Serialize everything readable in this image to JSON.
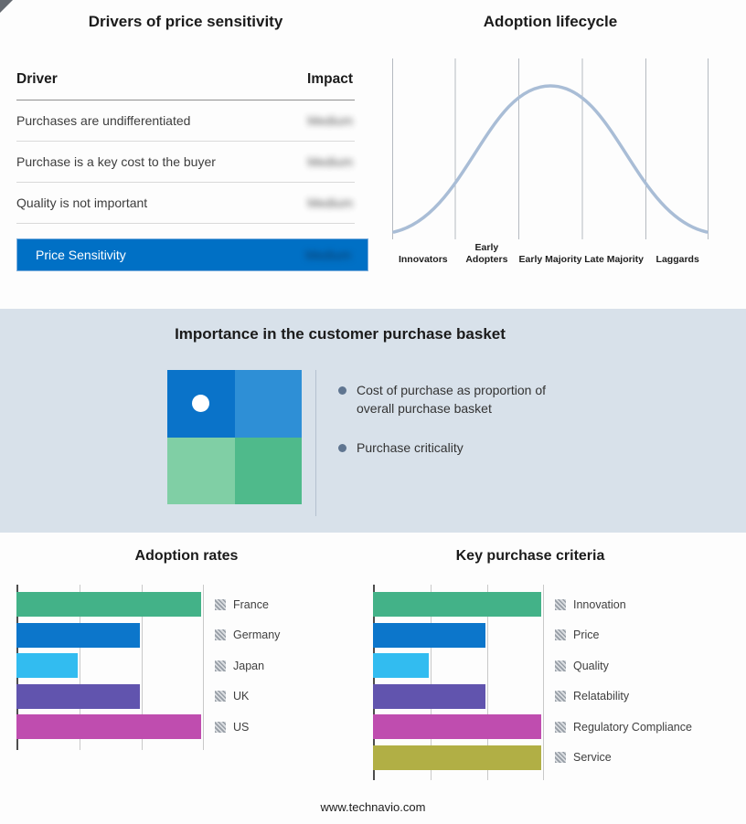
{
  "meta": {
    "footer": "www.technavio.com"
  },
  "icons": {
    "bullet": "filled-circle",
    "legend_swatch": "hatched-square",
    "quadrant_marker": "white-circle"
  },
  "drivers": {
    "title": "Drivers of price sensitivity",
    "col_driver": "Driver",
    "col_impact": "Impact",
    "rows": [
      {
        "driver": "Purchases are undifferentiated",
        "impact": "Medium"
      },
      {
        "driver": "Purchase is a key cost to the buyer",
        "impact": "Medium"
      },
      {
        "driver": "Quality is not important",
        "impact": "Medium"
      }
    ],
    "highlight": {
      "driver": "Price Sensitivity",
      "impact": "Medium",
      "bg": "#0070c5"
    }
  },
  "lifecycle": {
    "title": "Adoption lifecycle",
    "stages": [
      "Innovators",
      "Early Adopters",
      "Early Majority",
      "Late Majority",
      "Laggards"
    ],
    "curve_color": "#a9bdd6"
  },
  "basket": {
    "title": "Importance in the customer purchase basket",
    "bullets": [
      "Cost of purchase as proportion of overall purchase basket",
      "Purchase criticality"
    ],
    "quadrants": {
      "top_left": "#0a73c9",
      "top_right": "#2e8fd6",
      "bottom_left": "#80cfa5",
      "bottom_right": "#4fba8b"
    }
  },
  "chart_data": [
    {
      "type": "bar",
      "title": "Adoption rates",
      "orientation": "horizontal",
      "categories": [
        "France",
        "Germany",
        "Japan",
        "UK",
        "US"
      ],
      "values": [
        3,
        2,
        1,
        2,
        3
      ],
      "xlim": [
        0,
        3
      ],
      "grid": true,
      "legend_position": "right",
      "colors": [
        "#43b288",
        "#0c76cb",
        "#32bcf0",
        "#6154ae",
        "#bf4daf"
      ]
    },
    {
      "type": "bar",
      "title": "Key purchase criteria",
      "orientation": "horizontal",
      "categories": [
        "Innovation",
        "Price",
        "Quality",
        "Relatability",
        "Regulatory Compliance",
        "Service"
      ],
      "values": [
        3,
        2,
        1,
        2,
        3,
        3
      ],
      "xlim": [
        0,
        3
      ],
      "grid": true,
      "legend_position": "right",
      "colors": [
        "#43b288",
        "#0c76cb",
        "#32bcf0",
        "#6154ae",
        "#bf4daf",
        "#b1af45"
      ]
    }
  ]
}
